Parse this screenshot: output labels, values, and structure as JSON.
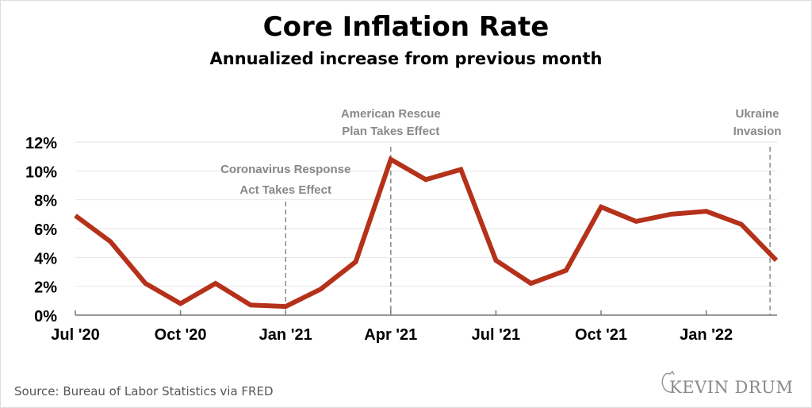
{
  "chart_data": {
    "type": "line",
    "title": "Core Inflation Rate",
    "subtitle": "Annualized increase from previous month",
    "x": [
      "2020-07",
      "2020-08",
      "2020-09",
      "2020-10",
      "2020-11",
      "2020-12",
      "2021-01",
      "2021-02",
      "2021-03",
      "2021-04",
      "2021-05",
      "2021-06",
      "2021-07",
      "2021-08",
      "2021-09",
      "2021-10",
      "2021-11",
      "2021-12",
      "2022-01",
      "2022-02",
      "2022-03"
    ],
    "series": [
      {
        "values": [
          6.9,
          5.1,
          2.2,
          0.8,
          2.2,
          0.7,
          0.6,
          1.8,
          3.7,
          10.8,
          9.4,
          10.1,
          3.8,
          2.2,
          3.1,
          7.5,
          6.5,
          7.0,
          7.2,
          6.3,
          3.8
        ],
        "color": "#b5311a"
      }
    ],
    "xticks": [
      {
        "x": "2020-07",
        "label": "Jul '20"
      },
      {
        "x": "2020-10",
        "label": "Oct '20"
      },
      {
        "x": "2021-01",
        "label": "Jan '21"
      },
      {
        "x": "2021-04",
        "label": "Apr '21"
      },
      {
        "x": "2021-07",
        "label": "Jul '21"
      },
      {
        "x": "2021-10",
        "label": "Oct '21"
      },
      {
        "x": "2022-01",
        "label": "Jan '22"
      }
    ],
    "yticks": [
      {
        "y": 0,
        "label": "0%"
      },
      {
        "y": 2,
        "label": "2%"
      },
      {
        "y": 4,
        "label": "4%"
      },
      {
        "y": 6,
        "label": "6%"
      },
      {
        "y": 8,
        "label": "8%"
      },
      {
        "y": 10,
        "label": "10%"
      },
      {
        "y": 12,
        "label": "12%"
      }
    ],
    "ylim": [
      0,
      12
    ],
    "grid": true,
    "annotations": [
      {
        "x": "2021-01",
        "lines": [
          "Coronavirus Response",
          "Act Takes Effect"
        ]
      },
      {
        "x": "2021-04",
        "lines": [
          "American Rescue",
          "Plan Takes Effect"
        ]
      },
      {
        "x": "2022-02-24",
        "lines": [
          "Ukraine",
          "Invasion"
        ]
      }
    ],
    "source": "Source: Bureau of Labor Statistics via FRED",
    "logo": "KEVIN DRUM"
  }
}
